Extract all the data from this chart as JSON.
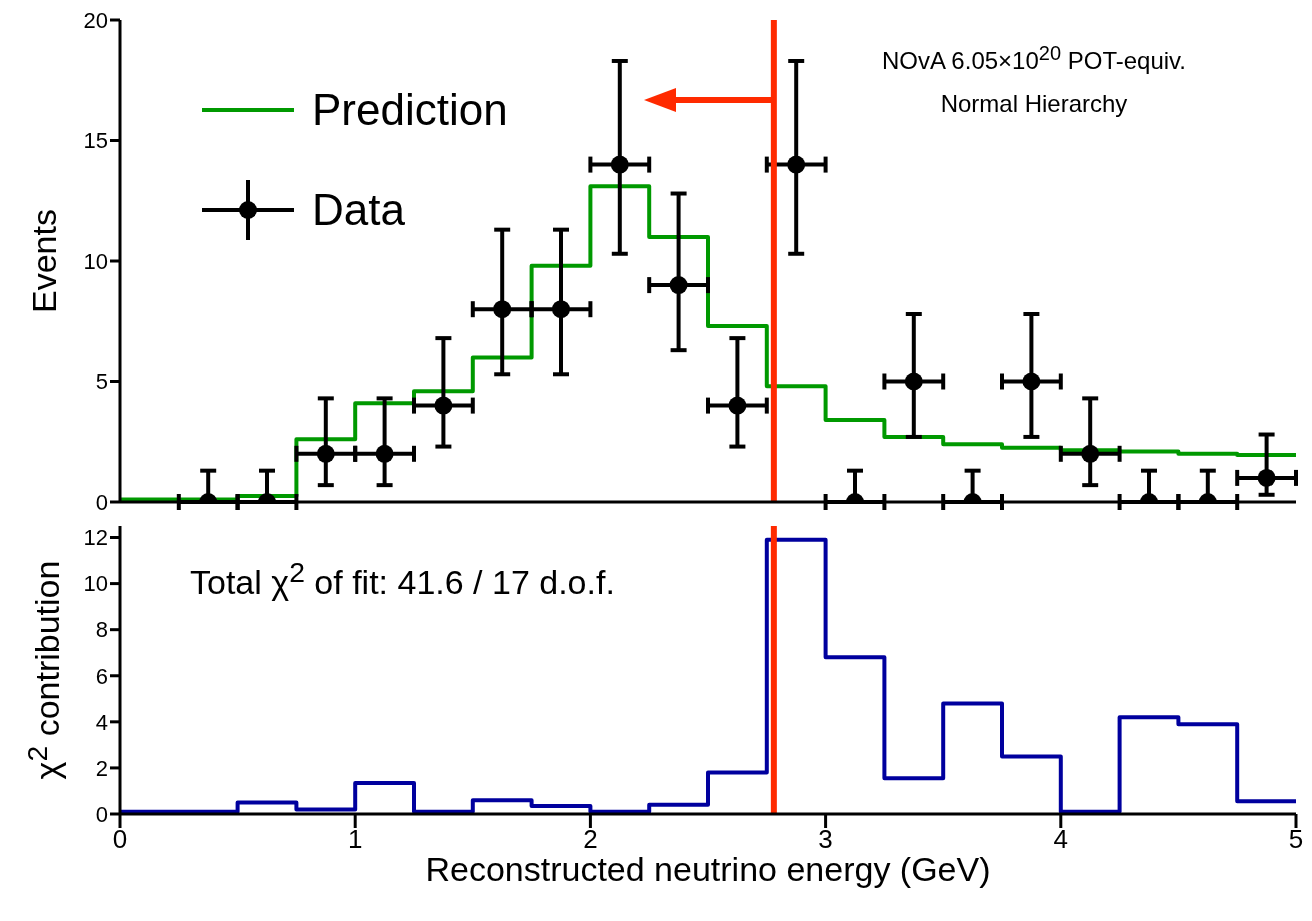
{
  "chart_data": [
    {
      "type": "histogram",
      "ylabel": "Events",
      "bins": [
        0,
        0.25,
        0.5,
        0.75,
        1,
        1.25,
        1.5,
        1.75,
        2,
        2.25,
        2.5,
        2.75,
        3,
        3.25,
        3.5,
        3.75,
        4,
        4.25,
        4.5,
        4.75,
        5
      ],
      "series": [
        {
          "name": "Prediction",
          "color": "#009900",
          "values": [
            0.1,
            0.1,
            0.25,
            2.6,
            4.1,
            4.6,
            6.0,
            9.8,
            13.1,
            11.0,
            7.3,
            4.8,
            3.4,
            2.7,
            2.4,
            2.25,
            2.15,
            2.1,
            2.0,
            1.95
          ]
        },
        {
          "name": "Data",
          "type": "scatter",
          "color": "#000000",
          "marker": "circle",
          "x": [
            0.375,
            0.625,
            0.875,
            1.125,
            1.375,
            1.625,
            1.875,
            2.125,
            2.375,
            2.625,
            2.875,
            3.125,
            3.375,
            3.625,
            3.875,
            4.125,
            4.375,
            4.625,
            4.875
          ],
          "values": [
            0,
            0,
            2,
            2,
            4,
            8,
            8,
            14,
            9,
            4,
            14,
            0,
            5,
            0,
            5,
            2,
            0,
            0,
            1
          ],
          "errors": [
            [
              0,
              1.3
            ],
            [
              0,
              1.3
            ],
            [
              0.7,
              4.3
            ],
            [
              0.7,
              4.3
            ],
            [
              2.3,
              6.8
            ],
            [
              5.3,
              11.3
            ],
            [
              5.3,
              11.3
            ],
            [
              10.3,
              18.3
            ],
            [
              6.3,
              12.8
            ],
            [
              2.3,
              6.8
            ],
            [
              10.3,
              18.3
            ],
            [
              0,
              1.3
            ],
            [
              2.7,
              7.8
            ],
            [
              0,
              1.3
            ],
            [
              2.7,
              7.8
            ],
            [
              0.7,
              4.3
            ],
            [
              0,
              1.3
            ],
            [
              0,
              1.3
            ],
            [
              0.3,
              2.8
            ]
          ],
          "xerrors": [
            0.125,
            0.125,
            0.125,
            0.125,
            0.125,
            0.125,
            0.125,
            0.125,
            0.125,
            0.125,
            0.125,
            0.125,
            0.125,
            0.125,
            0.125,
            0.125,
            0.125,
            0.125,
            0.125
          ]
        }
      ],
      "xlim": [
        0,
        5
      ],
      "xticks": [
        0,
        1,
        2,
        3,
        4,
        5
      ],
      "ylim": [
        0,
        20
      ],
      "yticks": [
        0,
        5,
        10,
        15,
        20
      ],
      "tick_labels": "y",
      "grid": false,
      "legend": "top left",
      "line_style": "solid",
      "ref_lines": [
        {
          "axis": "x",
          "value": 2.78,
          "color": "#ff2a00"
        }
      ],
      "annotations": [
        "NOvA 6.05×10$^{20}$ POT-equiv.",
        "Normal Hierarchy"
      ]
    },
    {
      "type": "histogram",
      "xlabel": "Reconstructed neutrino energy (GeV)",
      "ylabel": "χ$^{2}$ contribution",
      "bins": [
        0,
        0.25,
        0.5,
        0.75,
        1,
        1.25,
        1.5,
        1.75,
        2,
        2.25,
        2.5,
        2.75,
        3,
        3.25,
        3.5,
        3.75,
        4,
        4.25,
        4.5,
        4.75,
        5
      ],
      "values": [
        0.1,
        0.1,
        0.5,
        0.2,
        1.35,
        0.1,
        0.6,
        0.35,
        0.1,
        0.4,
        1.8,
        11.9,
        6.8,
        1.55,
        4.8,
        2.5,
        0.1,
        4.2,
        3.9,
        0.55
      ],
      "color": "#00009e",
      "xlim": [
        0,
        5
      ],
      "xticks": [
        0,
        1,
        2,
        3,
        4,
        5
      ],
      "ylim": [
        0,
        12.5
      ],
      "yticks": [
        0,
        2,
        4,
        6,
        8,
        10,
        12
      ],
      "grid": false,
      "line_style": "solid",
      "ref_lines": [
        {
          "axis": "x",
          "value": 2.78,
          "color": "#ff2a00"
        }
      ],
      "annotations": [
        "Total χ$^{2}$ of fit: 41.6 / 17 d.o.f."
      ]
    }
  ]
}
